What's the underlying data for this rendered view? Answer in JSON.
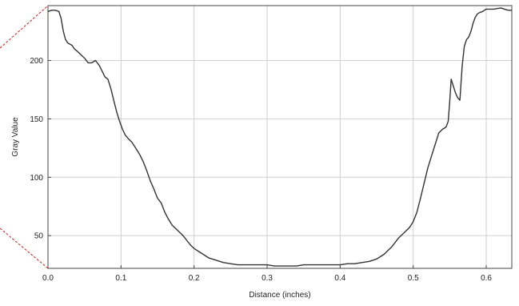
{
  "chart_data": {
    "type": "line",
    "title": "",
    "xlabel": "Distance (inches)",
    "ylabel": "Gray Value",
    "xlim": [
      0,
      0.635
    ],
    "ylim": [
      22,
      247
    ],
    "x_ticks": [
      0.0,
      0.1,
      0.2,
      0.3,
      0.4,
      0.5,
      0.6
    ],
    "x_tick_labels": [
      "0.0",
      "0.1",
      "0.2",
      "0.3",
      "0.4",
      "0.5",
      "0.6"
    ],
    "y_ticks": [
      50,
      100,
      150,
      200
    ],
    "y_tick_labels": [
      "50",
      "100",
      "150",
      "200"
    ],
    "grid": true,
    "legend": "none",
    "series": [
      {
        "x": [
          0.0,
          0.005,
          0.01,
          0.015,
          0.018,
          0.021,
          0.024,
          0.027,
          0.03,
          0.033,
          0.036,
          0.04,
          0.045,
          0.05,
          0.055,
          0.06,
          0.065,
          0.07,
          0.074,
          0.078,
          0.082,
          0.086,
          0.09,
          0.094,
          0.098,
          0.102,
          0.106,
          0.11,
          0.115,
          0.12,
          0.125,
          0.13,
          0.135,
          0.14,
          0.145,
          0.15,
          0.155,
          0.16,
          0.165,
          0.17,
          0.175,
          0.18,
          0.185,
          0.19,
          0.195,
          0.2,
          0.205,
          0.21,
          0.215,
          0.22,
          0.23,
          0.24,
          0.25,
          0.26,
          0.27,
          0.28,
          0.29,
          0.3,
          0.31,
          0.32,
          0.33,
          0.34,
          0.35,
          0.36,
          0.37,
          0.38,
          0.39,
          0.4,
          0.41,
          0.42,
          0.43,
          0.44,
          0.45,
          0.455,
          0.46,
          0.465,
          0.47,
          0.475,
          0.48,
          0.485,
          0.49,
          0.495,
          0.5,
          0.505,
          0.51,
          0.515,
          0.52,
          0.525,
          0.53,
          0.535,
          0.54,
          0.545,
          0.548,
          0.55,
          0.552,
          0.555,
          0.558,
          0.561,
          0.564,
          0.567,
          0.57,
          0.573,
          0.576,
          0.579,
          0.582,
          0.585,
          0.588,
          0.591,
          0.595,
          0.6,
          0.61,
          0.62,
          0.625,
          0.63,
          0.635
        ],
        "y": [
          242,
          243,
          243,
          242,
          236,
          225,
          218,
          215,
          214,
          213,
          210,
          208,
          205,
          202,
          198,
          198,
          200,
          196,
          191,
          186,
          184,
          176,
          166,
          156,
          148,
          141,
          136,
          133,
          130,
          125,
          120,
          114,
          106,
          97,
          90,
          82,
          78,
          70,
          64,
          59,
          56,
          53,
          50,
          46,
          42,
          39,
          37,
          35,
          33,
          31,
          29,
          27,
          26,
          25,
          25,
          25,
          25,
          25,
          24,
          24,
          24,
          24,
          25,
          25,
          25,
          25,
          25,
          25,
          26,
          26,
          27,
          28,
          30,
          32,
          34,
          37,
          40,
          44,
          48,
          51,
          54,
          57,
          62,
          70,
          82,
          95,
          108,
          118,
          128,
          138,
          141,
          143,
          148,
          165,
          184,
          178,
          172,
          168,
          166,
          195,
          212,
          218,
          220,
          225,
          232,
          237,
          240,
          241,
          242,
          244,
          244,
          245,
          244,
          243,
          243
        ]
      }
    ]
  }
}
